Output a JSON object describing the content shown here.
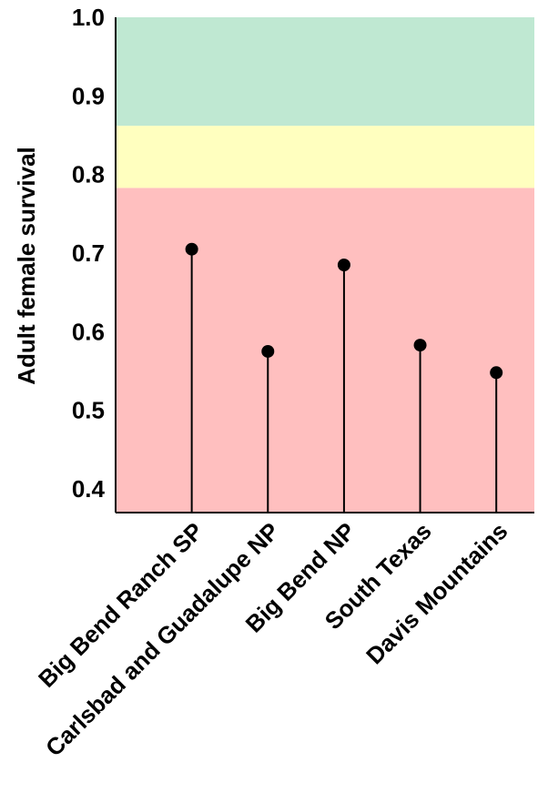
{
  "chart_data": {
    "type": "lollipop",
    "title": "",
    "ylabel": "Adult female survival",
    "xlabel": "",
    "ylim": [
      0.37,
      1.0
    ],
    "yticks": [
      "0.4",
      "0.5",
      "0.6",
      "0.7",
      "0.8",
      "0.9",
      "1.0"
    ],
    "categories": [
      "Big Bend Ranch SP",
      "Carlsbad and Guadalupe NP",
      "Big Bend NP",
      "South Texas",
      "Davis Mountains"
    ],
    "values": [
      0.705,
      0.575,
      0.685,
      0.583,
      0.548
    ],
    "bands": [
      {
        "from": 0.37,
        "to": 0.783,
        "color": "#ffbfbf"
      },
      {
        "from": 0.783,
        "to": 0.862,
        "color": "#ffffbf"
      },
      {
        "from": 0.862,
        "to": 1.0,
        "color": "#bfe8d2"
      }
    ],
    "marker_color": "#000000",
    "grid": false,
    "legend": "none"
  }
}
